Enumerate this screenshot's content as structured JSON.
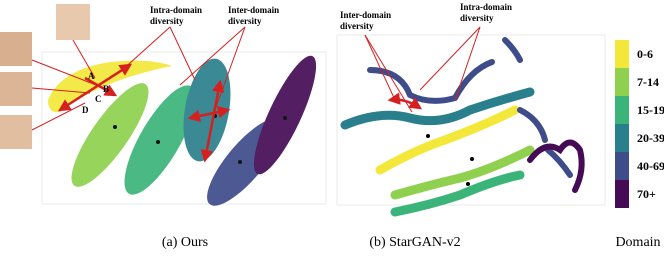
{
  "panel_a": {
    "annotations": {
      "intra": "Intra-domain diversity",
      "inter": "Inter-domain diversity"
    },
    "points": [
      "A",
      "B",
      "C",
      "D"
    ],
    "caption": "(a) Ours"
  },
  "panel_b": {
    "annotations": {
      "inter": "Inter-domain diversity",
      "intra": "Intra-domain diversity"
    },
    "caption": "(b) StarGAN-v2"
  },
  "legend": {
    "title": "Domain",
    "items": [
      {
        "label": "0-6",
        "color": "#f3e83a"
      },
      {
        "label": "7-14",
        "color": "#8fd14f"
      },
      {
        "label": "15-19",
        "color": "#3bb47a"
      },
      {
        "label": "20-39",
        "color": "#2a7f8d"
      },
      {
        "label": "40-69",
        "color": "#3e4c8a"
      },
      {
        "label": "70+",
        "color": "#450b55"
      }
    ]
  }
}
